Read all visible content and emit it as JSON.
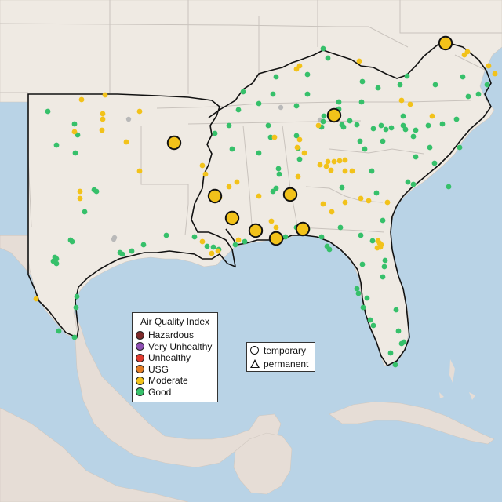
{
  "legend": {
    "title": "Air Quality Index",
    "categories": [
      {
        "label": "Hazardous",
        "color": "#7e2a2a"
      },
      {
        "label": "Very Unhealthy",
        "color": "#8e4fb3"
      },
      {
        "label": "Unhealthy",
        "color": "#e03a2e"
      },
      {
        "label": "USG",
        "color": "#e47c22"
      },
      {
        "label": "Moderate",
        "color": "#f2c21a"
      },
      {
        "label": "Good",
        "color": "#36c06a"
      }
    ]
  },
  "shape_legend": {
    "temporary_label": "temporary",
    "permanent_label": "permanent"
  },
  "colors": {
    "water": "#b9d3e6",
    "land": "#efeae3",
    "foreign_land": "#e6ddd6",
    "no_data": "#b9b9b9"
  }
}
